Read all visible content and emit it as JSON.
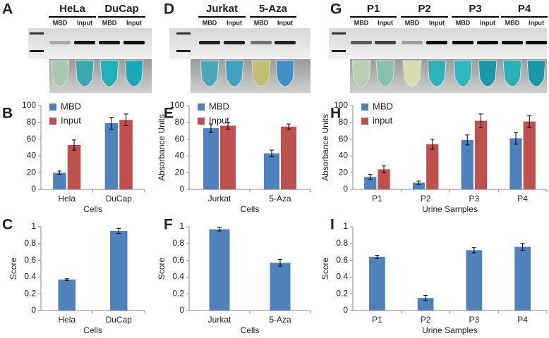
{
  "panels": [
    {
      "letter": "A",
      "groups": [
        {
          "name": "HeLa",
          "lanes": [
            "MBD",
            "Input"
          ]
        },
        {
          "name": "DuCap",
          "lanes": [
            "MBD",
            "Input"
          ]
        }
      ]
    },
    {
      "letter": "D",
      "groups": [
        {
          "name": "Jurkat",
          "lanes": [
            "MBD",
            "Input"
          ]
        },
        {
          "name": "5-Aza",
          "lanes": [
            "MBD",
            "Input"
          ]
        }
      ]
    },
    {
      "letter": "G",
      "groups": [
        {
          "name": "P1",
          "lanes": [
            "MBD",
            "Input"
          ]
        },
        {
          "name": "P2",
          "lanes": [
            "MBD",
            "Input"
          ]
        },
        {
          "name": "P3",
          "lanes": [
            "MBD",
            "Input"
          ]
        },
        {
          "name": "P4",
          "lanes": [
            "MBD",
            "Input"
          ]
        }
      ]
    }
  ],
  "chart_data": [
    {
      "type": "bar",
      "panel_label": "B",
      "categories": [
        "Hela",
        "DuCap"
      ],
      "series": [
        {
          "name": "MBD",
          "color": "#4f81bd",
          "values": [
            20,
            79
          ],
          "errors": [
            2,
            7
          ]
        },
        {
          "name": "Input",
          "color": "#c0504d",
          "values": [
            53,
            83
          ],
          "errors": [
            6,
            7
          ]
        }
      ],
      "ylim": [
        0,
        100
      ],
      "yticks": [
        0,
        20,
        40,
        60,
        80,
        100
      ],
      "x_label": "Cells",
      "legend": "top-left"
    },
    {
      "type": "bar",
      "panel_label": "E",
      "categories": [
        "Jurkat",
        "5-Aza"
      ],
      "series": [
        {
          "name": "MBD",
          "color": "#4f81bd",
          "values": [
            73,
            43
          ],
          "errors": [
            5,
            4
          ]
        },
        {
          "name": "Input",
          "color": "#c0504d",
          "values": [
            76,
            75
          ],
          "errors": [
            4,
            3
          ]
        }
      ],
      "ylim": [
        0,
        100
      ],
      "yticks": [
        0,
        20,
        40,
        60,
        80,
        100
      ],
      "y_label": "Absorbance Units",
      "x_label": "Cells",
      "legend": "top-left"
    },
    {
      "type": "bar",
      "panel_label": "H",
      "categories": [
        "P1",
        "P2",
        "P3",
        "P4"
      ],
      "series": [
        {
          "name": "MBD",
          "color": "#4f81bd",
          "values": [
            15,
            8,
            59,
            61
          ],
          "errors": [
            3,
            2,
            6,
            7
          ]
        },
        {
          "name": "input",
          "color": "#c0504d",
          "values": [
            24,
            54,
            82,
            81
          ],
          "errors": [
            4,
            6,
            8,
            7
          ]
        }
      ],
      "ylim": [
        0,
        100
      ],
      "yticks": [
        0,
        20,
        40,
        60,
        80,
        100
      ],
      "y_label": "Absorbance Units",
      "x_label": "Urine Samples",
      "legend": "top-left"
    },
    {
      "type": "bar",
      "panel_label": "C",
      "categories": [
        "Hela",
        "DuCap"
      ],
      "values": [
        0.37,
        0.95
      ],
      "errors": [
        0.01,
        0.03
      ],
      "color": "#4f81bd",
      "ylim": [
        0,
        1
      ],
      "yticks": [
        0,
        0.2,
        0.4,
        0.6,
        0.8,
        1
      ],
      "y_label": "Score",
      "x_label": "Cells"
    },
    {
      "type": "bar",
      "panel_label": "F",
      "categories": [
        "Jurkat",
        "5-Aza"
      ],
      "values": [
        0.97,
        0.57
      ],
      "errors": [
        0.02,
        0.04
      ],
      "color": "#4f81bd",
      "ylim": [
        0,
        1
      ],
      "yticks": [
        0,
        0.2,
        0.4,
        0.6,
        0.8,
        1
      ],
      "y_label": "Score",
      "x_label": "Cells"
    },
    {
      "type": "bar",
      "panel_label": "I",
      "categories": [
        "P1",
        "P2",
        "P3",
        "P4"
      ],
      "values": [
        0.64,
        0.15,
        0.72,
        0.76
      ],
      "errors": [
        0.02,
        0.03,
        0.03,
        0.04
      ],
      "color": "#4f81bd",
      "ylim": [
        0,
        1
      ],
      "yticks": [
        0,
        0.2,
        0.4,
        0.6,
        0.8,
        1
      ],
      "y_label": "Score",
      "x_label": "Urine Samples"
    }
  ]
}
